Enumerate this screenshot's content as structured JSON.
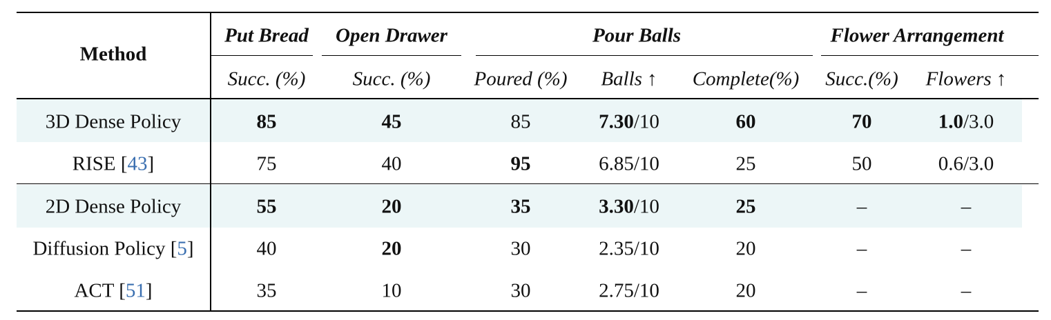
{
  "table": {
    "method_header": "Method",
    "groups": [
      {
        "label": "Put Bread"
      },
      {
        "label": "Open Drawer"
      },
      {
        "label": "Pour Balls"
      },
      {
        "label": "Flower Arrangement"
      }
    ],
    "subheaders": [
      "Succ. (%)",
      "Succ. (%)",
      "Poured (%)",
      "Balls ↑",
      "Complete(%)",
      "Succ.(%)",
      "Flowers ↑"
    ],
    "rows": [
      {
        "method": "3D Dense Policy",
        "ref": "",
        "highlight": true,
        "cells": [
          {
            "main": "85",
            "bold": true,
            "suffix": ""
          },
          {
            "main": "45",
            "bold": true,
            "suffix": ""
          },
          {
            "main": "85",
            "bold": false,
            "suffix": ""
          },
          {
            "main": "7.30",
            "bold": true,
            "suffix": "/10"
          },
          {
            "main": "60",
            "bold": true,
            "suffix": ""
          },
          {
            "main": "70",
            "bold": true,
            "suffix": ""
          },
          {
            "main": "1.0",
            "bold": true,
            "suffix": "/3.0"
          }
        ]
      },
      {
        "method": "RISE [",
        "ref": "43",
        "highlight": false,
        "cells": [
          {
            "main": "75",
            "bold": false,
            "suffix": ""
          },
          {
            "main": "40",
            "bold": false,
            "suffix": ""
          },
          {
            "main": "95",
            "bold": true,
            "suffix": ""
          },
          {
            "main": "6.85",
            "bold": false,
            "suffix": "/10"
          },
          {
            "main": "25",
            "bold": false,
            "suffix": ""
          },
          {
            "main": "50",
            "bold": false,
            "suffix": ""
          },
          {
            "main": "0.6",
            "bold": false,
            "suffix": "/3.0"
          }
        ]
      },
      {
        "method": "2D Dense Policy",
        "ref": "",
        "highlight": true,
        "cells": [
          {
            "main": "55",
            "bold": true,
            "suffix": ""
          },
          {
            "main": "20",
            "bold": true,
            "suffix": ""
          },
          {
            "main": "35",
            "bold": true,
            "suffix": ""
          },
          {
            "main": "3.30",
            "bold": true,
            "suffix": "/10"
          },
          {
            "main": "25",
            "bold": true,
            "suffix": ""
          },
          {
            "main": "–",
            "bold": false,
            "suffix": ""
          },
          {
            "main": "–",
            "bold": false,
            "suffix": ""
          }
        ]
      },
      {
        "method": "Diffusion Policy [",
        "ref": "5",
        "highlight": false,
        "cells": [
          {
            "main": "40",
            "bold": false,
            "suffix": ""
          },
          {
            "main": "20",
            "bold": true,
            "suffix": ""
          },
          {
            "main": "30",
            "bold": false,
            "suffix": ""
          },
          {
            "main": "2.35",
            "bold": false,
            "suffix": "/10"
          },
          {
            "main": "20",
            "bold": false,
            "suffix": ""
          },
          {
            "main": "–",
            "bold": false,
            "suffix": ""
          },
          {
            "main": "–",
            "bold": false,
            "suffix": ""
          }
        ]
      },
      {
        "method": "ACT [",
        "ref": "51",
        "highlight": false,
        "cells": [
          {
            "main": "35",
            "bold": false,
            "suffix": ""
          },
          {
            "main": "10",
            "bold": false,
            "suffix": ""
          },
          {
            "main": "30",
            "bold": false,
            "suffix": ""
          },
          {
            "main": "2.75",
            "bold": false,
            "suffix": "/10"
          },
          {
            "main": "20",
            "bold": false,
            "suffix": ""
          },
          {
            "main": "–",
            "bold": false,
            "suffix": ""
          },
          {
            "main": "–",
            "bold": false,
            "suffix": ""
          }
        ]
      }
    ]
  }
}
